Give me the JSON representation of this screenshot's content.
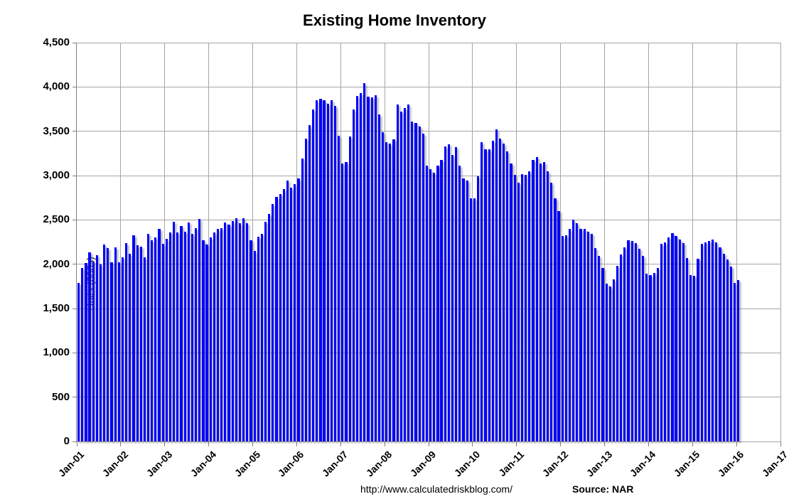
{
  "title": "Existing Home Inventory",
  "y_axis": {
    "label": "Units (000s)"
  },
  "footer": {
    "url": "http://www.calculatedriskblog.com/",
    "source": "Source: NAR"
  },
  "chart_data": {
    "type": "bar",
    "title": "Existing Home Inventory",
    "xlabel": "",
    "ylabel": "Units (000s)",
    "ylim": [
      0,
      4500
    ],
    "y_tick_step": 500,
    "y_tick_labels": [
      "0",
      "500",
      "1,000",
      "1,500",
      "2,000",
      "2,500",
      "3,000",
      "3,500",
      "4,000",
      "4,500"
    ],
    "x_tick_labels": [
      "Jan-01",
      "Jan-02",
      "Jan-03",
      "Jan-04",
      "Jan-05",
      "Jan-06",
      "Jan-07",
      "Jan-08",
      "Jan-09",
      "Jan-10",
      "Jan-11",
      "Jan-12",
      "Jan-13",
      "Jan-14",
      "Jan-15",
      "Jan-16",
      "Jan-17"
    ],
    "frequency": "monthly",
    "x_start": "Jan-01",
    "x_end": "Jan-16",
    "grid": true,
    "bar_color": "#0202fc",
    "values": [
      1790,
      1960,
      2010,
      2130,
      2030,
      2100,
      2000,
      2220,
      2180,
      2020,
      2190,
      2020,
      2080,
      2240,
      2120,
      2330,
      2210,
      2200,
      2080,
      2340,
      2270,
      2300,
      2400,
      2230,
      2290,
      2360,
      2480,
      2360,
      2430,
      2370,
      2470,
      2340,
      2410,
      2510,
      2270,
      2220,
      2300,
      2360,
      2400,
      2410,
      2470,
      2450,
      2490,
      2520,
      2460,
      2520,
      2460,
      2270,
      2150,
      2310,
      2340,
      2480,
      2570,
      2680,
      2760,
      2790,
      2850,
      2940,
      2860,
      2900,
      2970,
      3190,
      3420,
      3570,
      3750,
      3850,
      3870,
      3850,
      3810,
      3850,
      3790,
      3450,
      3140,
      3150,
      3440,
      3750,
      3900,
      3930,
      4040,
      3890,
      3880,
      3905,
      3690,
      3490,
      3380,
      3360,
      3410,
      3800,
      3720,
      3760,
      3800,
      3610,
      3590,
      3550,
      3470,
      3110,
      3070,
      3030,
      3110,
      3180,
      3330,
      3350,
      3230,
      3320,
      3110,
      2970,
      2940,
      2740,
      2745,
      2990,
      3380,
      3300,
      3300,
      3390,
      3520,
      3420,
      3360,
      3270,
      3140,
      3010,
      2920,
      3020,
      3010,
      3050,
      3180,
      3210,
      3140,
      3150,
      3050,
      2920,
      2740,
      2600,
      2320,
      2330,
      2400,
      2500,
      2460,
      2400,
      2400,
      2370,
      2340,
      2180,
      2090,
      1960,
      1780,
      1750,
      1830,
      1980,
      2110,
      2190,
      2270,
      2260,
      2240,
      2170,
      2090,
      1890,
      1880,
      1900,
      1960,
      2230,
      2250,
      2300,
      2350,
      2320,
      2280,
      2240,
      2070,
      1880,
      1870,
      2060,
      2230,
      2250,
      2260,
      2280,
      2250,
      2190,
      2120,
      2050,
      1975,
      1790,
      1820
    ]
  }
}
